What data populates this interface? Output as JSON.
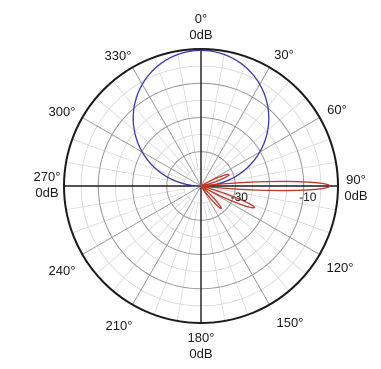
{
  "chart_data": {
    "type": "polar",
    "angle_ticks": [
      {
        "deg": 0,
        "label": "0°"
      },
      {
        "deg": 30,
        "label": "30°"
      },
      {
        "deg": 60,
        "label": "60°"
      },
      {
        "deg": 90,
        "label": "90°"
      },
      {
        "deg": 120,
        "label": "120°"
      },
      {
        "deg": 150,
        "label": "150°"
      },
      {
        "deg": 180,
        "label": "180°"
      },
      {
        "deg": 210,
        "label": "210°"
      },
      {
        "deg": 240,
        "label": "240°"
      },
      {
        "deg": 270,
        "label": "270°"
      },
      {
        "deg": 300,
        "label": "300°"
      },
      {
        "deg": 330,
        "label": "330°"
      }
    ],
    "direction_db_labels": {
      "top": "0dB",
      "right": "0dB",
      "bottom": "0dB",
      "left": "0dB"
    },
    "radial_tick_labels": [
      {
        "value": -30,
        "label": "-30"
      },
      {
        "value": -10,
        "label": "-10"
      }
    ],
    "radial_range_db": [
      -40,
      0
    ],
    "grid": true,
    "colors": {
      "outer_circle": "#1a1a1a",
      "major_grid": "#9a9a9a",
      "minor_grid": "#d6d6d6",
      "axes": "#1a1a1a",
      "cardioid": "#3a3aa8",
      "lobe": "#c0392b"
    },
    "series": [
      {
        "style": "cardioid",
        "shape": "circle-through-origin",
        "peak_deg": 0,
        "peak_fraction_of_radius": 0.99,
        "color": "#3a3aa8"
      },
      {
        "style": "lobes",
        "color": "#c0392b",
        "lobes": [
          {
            "center_deg": 90,
            "reach_fraction": 0.94,
            "half_width_deg": 7
          },
          {
            "center_deg": 68,
            "reach_fraction": 0.22,
            "half_width_deg": 10
          },
          {
            "center_deg": 112,
            "reach_fraction": 0.42,
            "half_width_deg": 8
          },
          {
            "center_deg": 138,
            "reach_fraction": 0.22,
            "half_width_deg": 9
          }
        ]
      }
    ]
  }
}
